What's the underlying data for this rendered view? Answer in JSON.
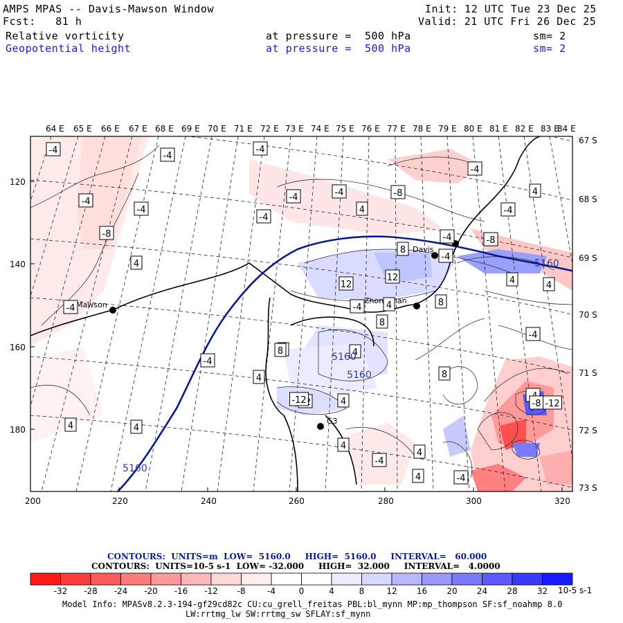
{
  "header": {
    "title": "AMPS MPAS -- Davis-Mawson Window",
    "fcst": "Fcst:   81 h",
    "init": "Init: 12 UTC Tue 23 Dec 25",
    "valid": "Valid: 21 UTC Fri 26 Dec 25",
    "field1": {
      "name": "Relative vorticity",
      "level": "at pressure =  500 hPa",
      "sm": "sm= 2"
    },
    "field2": {
      "name": "Geopotential height",
      "level": "at pressure =  500 hPa",
      "sm": "sm= 2"
    }
  },
  "axes": {
    "top_lon": [
      "64 E",
      "65 E",
      "66 E",
      "67 E",
      "68 E",
      "69 E",
      "70 E",
      "71 E",
      "72 E",
      "73 E",
      "74 E",
      "75 E",
      "76 E",
      "77 E",
      "78 E",
      "79 E",
      "80 E",
      "81 E",
      "82 E",
      "83 E",
      "84 E"
    ],
    "right_lat": [
      "67 S",
      "68 S",
      "69 S",
      "70 S",
      "71 S",
      "72 S",
      "73 S"
    ],
    "left_y": [
      "120",
      "140",
      "160",
      "180"
    ],
    "bottom_x": [
      "200",
      "220",
      "240",
      "260",
      "280",
      "300",
      "320"
    ]
  },
  "stations": [
    {
      "name": "Mawson"
    },
    {
      "name": "Davis"
    },
    {
      "name": "Zhongshan"
    },
    {
      "name": "G3"
    }
  ],
  "contour_labels": [
    "-4",
    "-4",
    "-4",
    "-4",
    "-4",
    "-4",
    "-4",
    "-4",
    "-4",
    "-4",
    "-4",
    "-4",
    "-4",
    "-4",
    "-4",
    "-4",
    "-4",
    "-4",
    "-4",
    "-8",
    "-8",
    "-8",
    "-8",
    "4",
    "4",
    "4",
    "4",
    "4",
    "4",
    "4",
    "4",
    "4",
    "4",
    "4",
    "4",
    "4",
    "4",
    "4",
    "8",
    "8",
    "8",
    "8",
    "8",
    "12",
    "12",
    "12",
    "-12",
    "-12",
    "5160",
    "5160",
    "5160",
    "5160"
  ],
  "colorbar": {
    "colors": [
      "#ff1a1a",
      "#ff3a3a",
      "#ff5a5a",
      "#ff7a7a",
      "#ff9898",
      "#ffb8b8",
      "#ffd8d8",
      "#ffeded",
      "#ffffff",
      "#ffffff",
      "#ededff",
      "#d8d8ff",
      "#b8b8ff",
      "#9898ff",
      "#7a7aff",
      "#5a5aff",
      "#3a3aff",
      "#1a1aff"
    ],
    "ticks": [
      "-32",
      "-28",
      "-24",
      "-20",
      "-16",
      "-12",
      "-8",
      "-4",
      "0",
      "4",
      "8",
      "12",
      "16",
      "20",
      "24",
      "28",
      "32"
    ],
    "unit": "10-5 s-1"
  },
  "contours_info": {
    "line1": "CONTOURS:  UNITS=m  LOW=  5160.0     HIGH=  5160.0     INTERVAL=   60.000",
    "line2": "CONTOURS:  UNITS=10-5 s-1  LOW= -32.000     HIGH=  32.000     INTERVAL=   4.0000"
  },
  "model_info": {
    "line1": "Model Info: MPASv8.2.3-194-gf29cd82c CU:cu_grell_freitas PBL:bl_mynn MP:mp_thompson SF:sf_noahmp 8.0",
    "line2": "LW:rrtmg_lw SW:rrtmg_sw SFLAY:sf_mynn"
  }
}
